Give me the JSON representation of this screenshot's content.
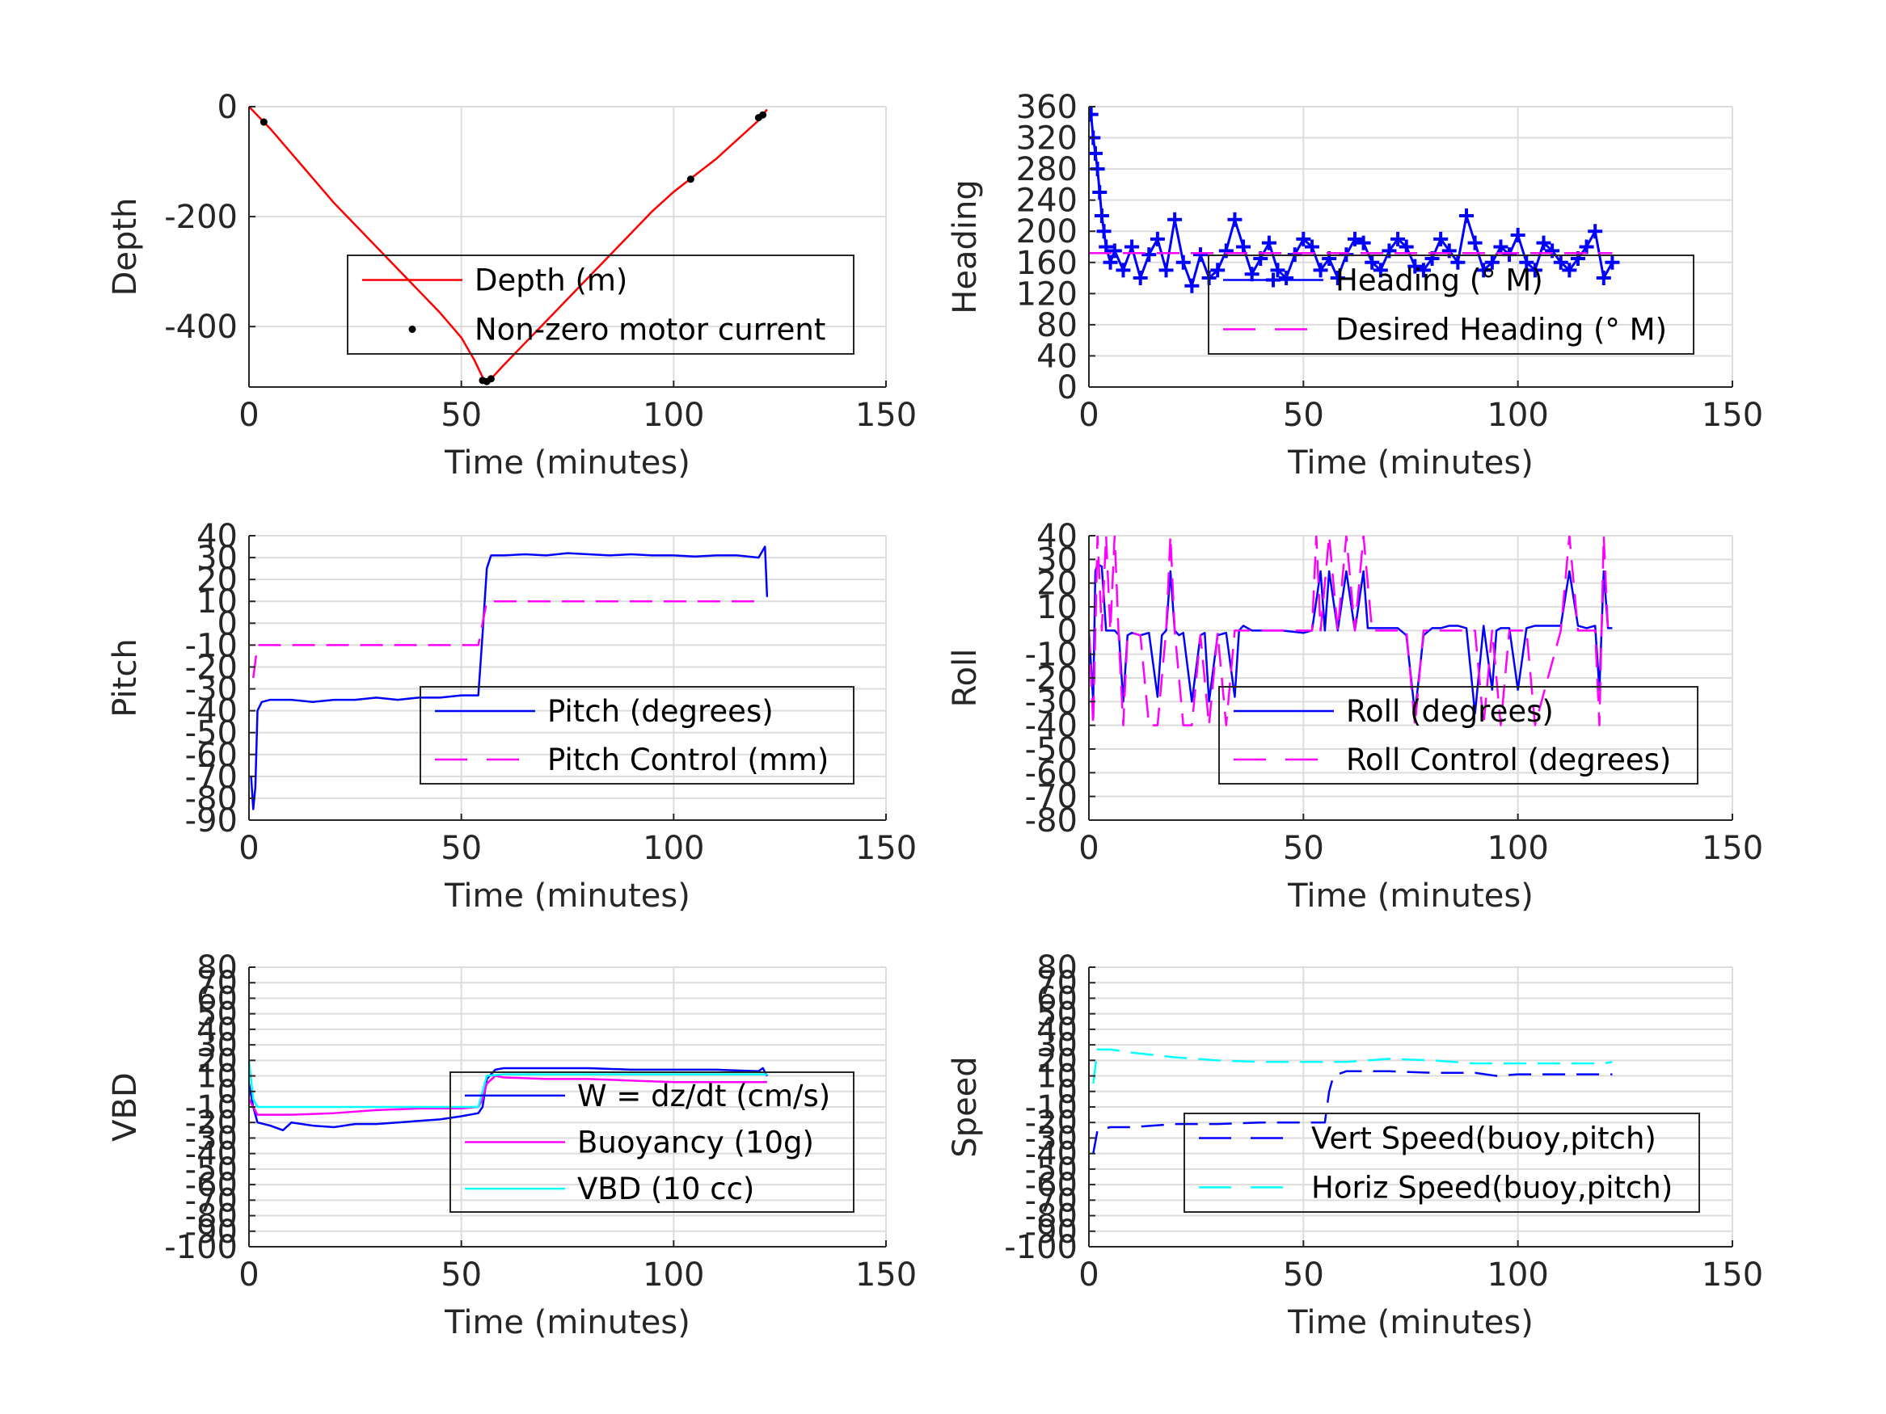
{
  "chart_data": [
    {
      "type": "line",
      "xlabel": "Time (minutes)",
      "ylabel": "Depth",
      "xlim": [
        0,
        150
      ],
      "ylim": [
        -510,
        0
      ],
      "xticks": [
        0,
        50,
        100,
        150
      ],
      "yticks": [
        0,
        -200,
        -400
      ],
      "yticklabels": [
        "0",
        "-200",
        "-400"
      ],
      "grid": true,
      "legend_position": "center-right",
      "series": [
        {
          "name": "Depth (m)",
          "color": "#ff0000",
          "style": "solid",
          "x": [
            0,
            5,
            10,
            15,
            20,
            25,
            30,
            35,
            40,
            45,
            50,
            53,
            55.5,
            57,
            60,
            65,
            70,
            75,
            80,
            85,
            90,
            95,
            100,
            105,
            110,
            115,
            120,
            122
          ],
          "y": [
            0,
            -40,
            -85,
            -130,
            -175,
            -215,
            -255,
            -295,
            -335,
            -375,
            -420,
            -460,
            -500,
            -495,
            -470,
            -430,
            -390,
            -350,
            -310,
            -270,
            -230,
            -190,
            -155,
            -125,
            -95,
            -60,
            -25,
            -5
          ]
        },
        {
          "name": "Non-zero motor current",
          "color": "#000000",
          "style": "markers",
          "x": [
            3.5,
            55,
            56,
            57,
            104,
            120,
            121
          ],
          "y": [
            -28,
            -498,
            -500,
            -495,
            -132,
            -20,
            -15
          ]
        }
      ]
    },
    {
      "type": "line",
      "xlabel": "Time (minutes)",
      "ylabel": "Heading",
      "xlim": [
        0,
        150
      ],
      "ylim": [
        0,
        360
      ],
      "xticks": [
        0,
        50,
        100,
        150
      ],
      "yticks": [
        0,
        40,
        80,
        120,
        160,
        200,
        240,
        280,
        320,
        360
      ],
      "yticklabels": [
        "0",
        "40",
        "80",
        "120",
        "160",
        "200",
        "240",
        "280",
        "320",
        "360"
      ],
      "grid": true,
      "legend_position": "center-right",
      "series": [
        {
          "name": "Heading (° M)",
          "color": "#0000ff",
          "style": "plus-markers",
          "x": [
            0.5,
            1,
            1.5,
            2,
            2.5,
            3,
            3.5,
            4,
            5,
            6,
            8,
            10,
            12,
            14,
            16,
            18,
            20,
            22,
            24,
            26,
            28,
            30,
            32,
            34,
            36,
            38,
            40,
            42,
            44,
            46,
            48,
            50,
            52,
            54,
            56,
            58,
            60,
            62,
            64,
            66,
            68,
            70,
            72,
            74,
            76,
            78,
            80,
            82,
            84,
            86,
            88,
            90,
            92,
            94,
            96,
            98,
            100,
            102,
            104,
            106,
            108,
            110,
            112,
            114,
            116,
            118,
            120,
            122
          ],
          "y": [
            350,
            320,
            300,
            280,
            250,
            220,
            200,
            180,
            160,
            175,
            150,
            180,
            140,
            170,
            190,
            150,
            215,
            160,
            130,
            170,
            140,
            150,
            175,
            215,
            180,
            145,
            165,
            185,
            150,
            140,
            170,
            190,
            180,
            150,
            165,
            140,
            170,
            190,
            185,
            160,
            150,
            175,
            190,
            180,
            155,
            150,
            165,
            190,
            175,
            160,
            220,
            185,
            150,
            160,
            180,
            170,
            195,
            160,
            150,
            185,
            175,
            160,
            150,
            165,
            180,
            200,
            140,
            160
          ]
        },
        {
          "name": "Desired Heading (° M)",
          "color": "#ff00ff",
          "style": "dashed",
          "x": [
            0,
            122
          ],
          "y": [
            172,
            172
          ]
        }
      ]
    },
    {
      "type": "line",
      "xlabel": "Time (minutes)",
      "ylabel": "Pitch",
      "xlim": [
        0,
        150
      ],
      "ylim": [
        -90,
        40
      ],
      "xticks": [
        0,
        50,
        100,
        150
      ],
      "yticks": [
        40,
        30,
        20,
        10,
        0,
        -10,
        -20,
        -30,
        -40,
        -50,
        -60,
        -70,
        -80,
        -90
      ],
      "yticklabels": [
        "40",
        "30",
        "20",
        "10",
        "0",
        "-10",
        "-20",
        "-30",
        "-40",
        "-50",
        "-60",
        "-70",
        "-80",
        "-90"
      ],
      "grid": true,
      "legend_position": "lower-right",
      "series": [
        {
          "name": "Pitch (degrees)",
          "color": "#0000ff",
          "style": "solid",
          "x": [
            0.5,
            1,
            1.5,
            2,
            3,
            5,
            10,
            15,
            20,
            25,
            30,
            35,
            40,
            45,
            50,
            54,
            55,
            56,
            57,
            60,
            65,
            70,
            75,
            80,
            85,
            90,
            95,
            100,
            105,
            110,
            115,
            120,
            121.5,
            122
          ],
          "y": [
            -70,
            -85,
            -75,
            -40,
            -36,
            -35,
            -35,
            -36,
            -35,
            -35,
            -34,
            -35,
            -34,
            -34,
            -33,
            -33,
            -5,
            25,
            31,
            31,
            31.5,
            31,
            32,
            31.5,
            31,
            31.5,
            31,
            31,
            30.5,
            31,
            31,
            30,
            35,
            12
          ]
        },
        {
          "name": "Pitch Control (mm)",
          "color": "#ff00ff",
          "style": "dashed",
          "x": [
            1,
            2,
            3,
            10,
            20,
            30,
            40,
            50,
            54,
            55,
            56,
            60,
            70,
            80,
            90,
            100,
            110,
            120
          ],
          "y": [
            -25,
            -10,
            -10,
            -10,
            -10,
            -10,
            -10,
            -10,
            -10,
            0,
            10,
            10,
            10,
            10,
            10,
            10,
            10,
            10
          ]
        }
      ]
    },
    {
      "type": "line",
      "xlabel": "Time (minutes)",
      "ylabel": "Roll",
      "xlim": [
        0,
        150
      ],
      "ylim": [
        -80,
        40
      ],
      "xticks": [
        0,
        50,
        100,
        150
      ],
      "yticks": [
        40,
        30,
        20,
        10,
        0,
        -10,
        -20,
        -30,
        -40,
        -50,
        -60,
        -70,
        -80
      ],
      "yticklabels": [
        "40",
        "30",
        "20",
        "10",
        "0",
        "-10",
        "-20",
        "-30",
        "-40",
        "-50",
        "-60",
        "-70",
        "-80"
      ],
      "grid": true,
      "legend_position": "lower-right",
      "series": [
        {
          "name": "Roll (degrees)",
          "color": "#0000ff",
          "style": "solid",
          "x": [
            0,
            1,
            1.5,
            2,
            3,
            4,
            6,
            7,
            8,
            9,
            10,
            12,
            14,
            16,
            17,
            18,
            19,
            20,
            21,
            22,
            24,
            26,
            27,
            28,
            30,
            32,
            34,
            35,
            36,
            38,
            40,
            45,
            50,
            52,
            54,
            55,
            56,
            58,
            60,
            62,
            64,
            65,
            66,
            70,
            72,
            74,
            76,
            78,
            80,
            82,
            84,
            86,
            88,
            90,
            92,
            94,
            95,
            96,
            98,
            100,
            102,
            104,
            110,
            112,
            114,
            116,
            118,
            119,
            120,
            121,
            122
          ],
          "y": [
            0,
            -30,
            25,
            28,
            27,
            0,
            0,
            -2,
            -30,
            -2,
            -1,
            -2,
            -1,
            -28,
            -2,
            0,
            25,
            0,
            -2,
            -1,
            -30,
            -2,
            -1,
            -30,
            -2,
            -1,
            -28,
            0,
            2,
            0,
            0,
            0,
            -1,
            0,
            25,
            0,
            25,
            0,
            25,
            0,
            25,
            1,
            1,
            1,
            1,
            -2,
            -35,
            -2,
            1,
            1,
            2,
            2,
            1,
            -35,
            2,
            -25,
            0,
            1,
            1,
            -25,
            1,
            2,
            2,
            25,
            2,
            1,
            2,
            -25,
            25,
            1,
            1
          ]
        },
        {
          "name": "Roll Control (degrees)",
          "color": "#ff00ff",
          "style": "dashed",
          "x": [
            0,
            1,
            2,
            3,
            4,
            5,
            6,
            7,
            8,
            9,
            10,
            12,
            14,
            16,
            18,
            19,
            20,
            22,
            24,
            26,
            28,
            30,
            32,
            34,
            36,
            38,
            40,
            50,
            52,
            53,
            54,
            56,
            58,
            60,
            62,
            64,
            66,
            70,
            74,
            76,
            78,
            80,
            90,
            92,
            94,
            96,
            98,
            100,
            102,
            104,
            110,
            112,
            114,
            116,
            118,
            119,
            120,
            121,
            122
          ],
          "y": [
            0,
            -40,
            40,
            0,
            40,
            0,
            40,
            -5,
            -40,
            -2,
            -1,
            -2,
            -40,
            -40,
            0,
            40,
            0,
            -40,
            -40,
            -2,
            -40,
            -1,
            -40,
            0,
            0,
            0,
            0,
            0,
            0,
            40,
            0,
            40,
            0,
            40,
            0,
            40,
            0,
            0,
            0,
            -40,
            0,
            0,
            0,
            -40,
            0,
            -40,
            0,
            0,
            0,
            -40,
            0,
            40,
            0,
            0,
            0,
            -40,
            40,
            0,
            0
          ]
        }
      ]
    },
    {
      "type": "line",
      "xlabel": "Time (minutes)",
      "ylabel": "VBD",
      "xlim": [
        0,
        150
      ],
      "ylim": [
        -100,
        80
      ],
      "xticks": [
        0,
        50,
        100,
        150
      ],
      "yticks": [
        80,
        70,
        60,
        50,
        40,
        30,
        20,
        10,
        0,
        -10,
        -20,
        -30,
        -40,
        -50,
        -60,
        -70,
        -80,
        -90,
        -100
      ],
      "yticklabels": [
        "80",
        "70",
        "60",
        "50",
        "40",
        "30",
        "20",
        "10",
        "0",
        "-10",
        "-20",
        "-30",
        "-40",
        "-50",
        "-60",
        "-70",
        "-80",
        "-90",
        "-100"
      ],
      "grid": true,
      "legend_position": "lower-right",
      "series": [
        {
          "name": "W = dz/dt (cm/s)",
          "color": "#0000ff",
          "style": "solid",
          "x": [
            0,
            1,
            2,
            5,
            8,
            10,
            15,
            20,
            25,
            30,
            35,
            40,
            45,
            50,
            54,
            55,
            56,
            58,
            60,
            70,
            80,
            90,
            100,
            110,
            120,
            121,
            122
          ],
          "y": [
            5,
            -10,
            -20,
            -22,
            -25,
            -20,
            -22,
            -23,
            -21,
            -21,
            -20,
            -19,
            -18,
            -16,
            -14,
            -10,
            8,
            14,
            15,
            15,
            15,
            14,
            14,
            14,
            13,
            15,
            10
          ]
        },
        {
          "name": "Buoyancy (10g)",
          "color": "#ff00ff",
          "style": "solid",
          "x": [
            0,
            1,
            2,
            10,
            20,
            30,
            40,
            50,
            54,
            55,
            56,
            58,
            60,
            70,
            80,
            90,
            100,
            110,
            120,
            122
          ],
          "y": [
            -5,
            -10,
            -15,
            -15,
            -14,
            -12,
            -11,
            -11,
            -10,
            -5,
            5,
            10,
            9,
            8,
            8,
            7,
            6,
            6,
            6,
            6
          ]
        },
        {
          "name": "VBD (10 cc)",
          "color": "#00ffff",
          "style": "solid",
          "x": [
            0,
            1,
            2,
            10,
            20,
            30,
            40,
            50,
            54,
            55,
            56,
            60,
            70,
            80,
            90,
            100,
            110,
            120,
            122
          ],
          "y": [
            20,
            -5,
            -10,
            -10,
            -10,
            -10,
            -10,
            -10,
            -10,
            0,
            10,
            11,
            11,
            11,
            11,
            11,
            11,
            11,
            11
          ]
        }
      ]
    },
    {
      "type": "line",
      "xlabel": "Time (minutes)",
      "ylabel": "Speed",
      "xlim": [
        0,
        150
      ],
      "ylim": [
        -100,
        80
      ],
      "xticks": [
        0,
        50,
        100,
        150
      ],
      "yticks": [
        80,
        70,
        60,
        50,
        40,
        30,
        20,
        10,
        0,
        -10,
        -20,
        -30,
        -40,
        -50,
        -60,
        -70,
        -80,
        -90,
        -100
      ],
      "yticklabels": [
        "80",
        "70",
        "60",
        "50",
        "40",
        "30",
        "20",
        "10",
        "0",
        "-10",
        "-20",
        "-30",
        "-40",
        "-50",
        "-60",
        "-70",
        "-80",
        "-90",
        "-100"
      ],
      "grid": true,
      "legend_position": "lower-right",
      "series": [
        {
          "name": "Vert Speed(buoy,pitch)",
          "color": "#0000ff",
          "style": "dashed",
          "x": [
            1,
            2,
            5,
            10,
            20,
            30,
            40,
            50,
            55,
            56,
            57,
            60,
            70,
            80,
            90,
            95,
            100,
            110,
            120,
            122
          ],
          "y": [
            -40,
            -25,
            -23,
            -23,
            -21,
            -21,
            -20,
            -20,
            -20,
            0,
            10,
            13,
            13,
            12,
            12,
            10,
            11,
            11,
            11,
            11
          ]
        },
        {
          "name": "Horiz Speed(buoy,pitch)",
          "color": "#00ffff",
          "style": "dashed",
          "x": [
            1,
            2,
            5,
            10,
            20,
            30,
            40,
            50,
            55,
            60,
            70,
            80,
            90,
            100,
            110,
            120,
            122
          ],
          "y": [
            5,
            27,
            27,
            25,
            22,
            20,
            19,
            19,
            19,
            19,
            21,
            20,
            18,
            18,
            18,
            18,
            19
          ]
        }
      ]
    }
  ]
}
